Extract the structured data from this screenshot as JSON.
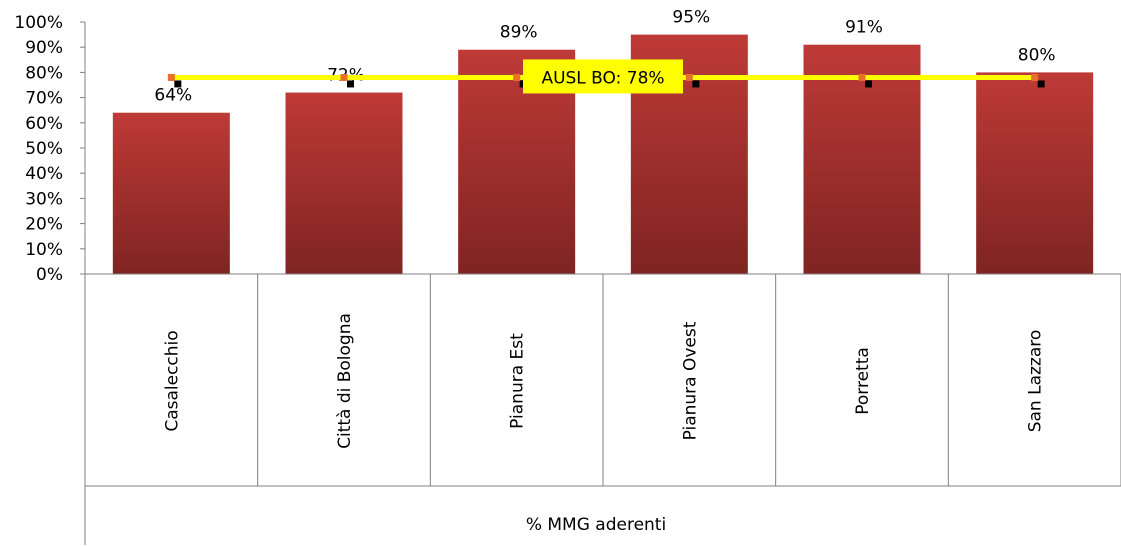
{
  "chart_data": {
    "type": "bar",
    "categories": [
      "Casalecchio",
      "Città di Bologna",
      "Pianura Est",
      "Pianura Ovest",
      "Porretta",
      "San Lazzaro"
    ],
    "values": [
      64,
      72,
      89,
      95,
      91,
      80
    ],
    "value_labels": [
      "64%",
      "72%",
      "89%",
      "95%",
      "91%",
      "80%"
    ],
    "reference_line": {
      "value": 78,
      "label": "AUSL BO: 78%",
      "color": "#FFFF00"
    },
    "y_ticks": [
      "0%",
      "10%",
      "20%",
      "30%",
      "40%",
      "50%",
      "60%",
      "70%",
      "80%",
      "90%",
      "100%"
    ],
    "ylim": [
      0,
      100
    ],
    "xlabel": "% MMG aderenti",
    "ylabel": "",
    "title": "",
    "grid": false,
    "colors": {
      "bar_top": "#BE3A37",
      "bar_bottom": "#7F2422",
      "line": "#FFFF00",
      "marker": "#E8702A",
      "line_marker_shadow": "#000000"
    }
  }
}
